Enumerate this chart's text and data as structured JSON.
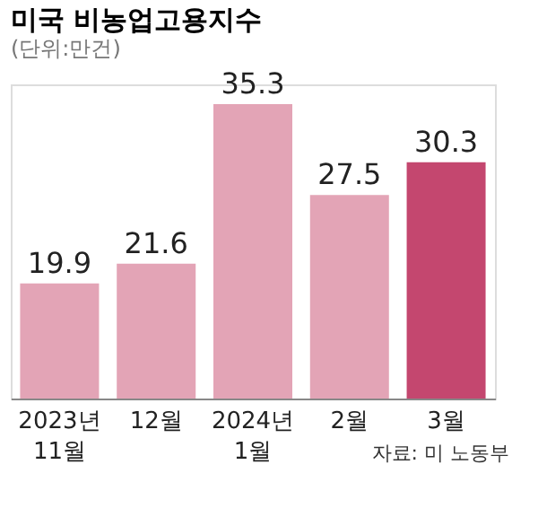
{
  "chart_data": {
    "type": "bar",
    "title": "미국 비농업고용지수",
    "subtitle": "(단위:만건)",
    "categories": [
      "2023년\n11월",
      "12월",
      "2024년\n1월",
      "2월",
      "3월"
    ],
    "values": [
      19.9,
      21.6,
      35.3,
      27.5,
      30.3
    ],
    "colors": [
      "#e3a4b6",
      "#e3a4b6",
      "#e3a4b6",
      "#e3a4b6",
      "#c4476f"
    ],
    "ylim": [
      10,
      37
    ],
    "data_labels": true,
    "grid": false,
    "annotations": [
      "자료: 미 노동부"
    ]
  }
}
